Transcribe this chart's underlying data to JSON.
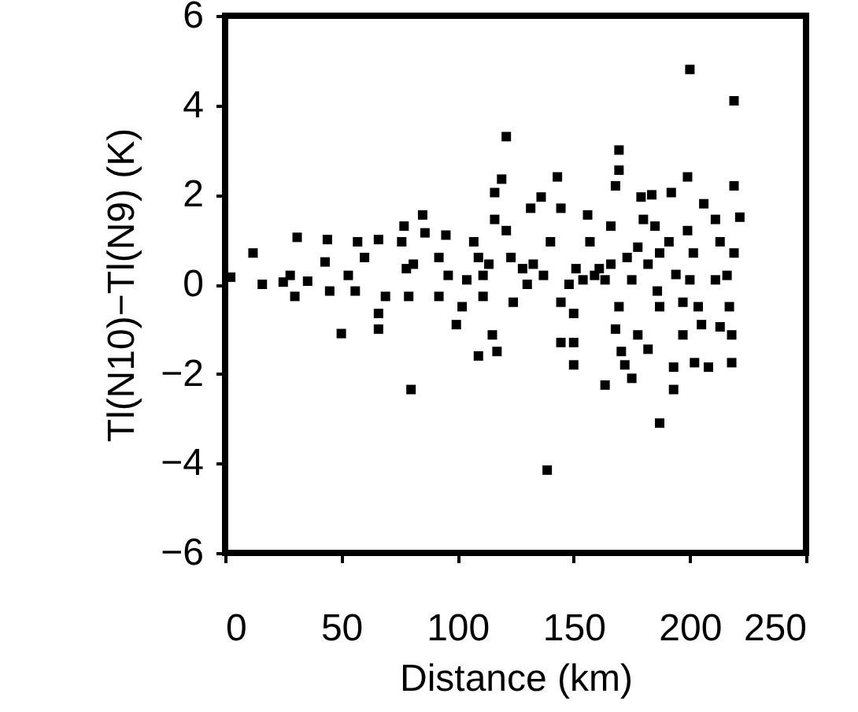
{
  "chart_data": {
    "type": "scatter",
    "xlabel": "Distance (km)",
    "ylabel": "Tl(N10)−Tl(N9)  (K)",
    "xlim": [
      0,
      250
    ],
    "xticks": [
      0,
      50,
      100,
      150,
      200,
      250
    ],
    "ylim": [
      -6,
      6
    ],
    "yticks": [
      -6,
      -4,
      -2,
      0,
      2,
      4,
      6
    ],
    "grid": false,
    "marker": "square",
    "series": [
      {
        "color": "#000000",
        "x": [
          2.4,
          12,
          16,
          25,
          28,
          30,
          31,
          35.5,
          44,
          43,
          45,
          50,
          53,
          57,
          56,
          60,
          66,
          66,
          66,
          69,
          77,
          76,
          78,
          81,
          79,
          80,
          85,
          86,
          92,
          95,
          92,
          96,
          99.5,
          102,
          107,
          109,
          111,
          115,
          109,
          117,
          116,
          119,
          121,
          116,
          121,
          123,
          124,
          128,
          131.5,
          136,
          140,
          137,
          143,
          144.5,
          144.5,
          150,
          144.5,
          150,
          150,
          138.6,
          156,
          157,
          154,
          161,
          166,
          168,
          169.5,
          169.5,
          169.5,
          168,
          170.5,
          172,
          175,
          163.5,
          177.6,
          182,
          179,
          183.6,
          180,
          185,
          182,
          186,
          187,
          192,
          191,
          193,
          193,
          187,
          197,
          197,
          199,
          200,
          199,
          201.5,
          200,
          203.6,
          202,
          208,
          205,
          206,
          211,
          213,
          211,
          213,
          218,
          217,
          218,
          219,
          219,
          221.5,
          219,
          216,
          159,
          163.5,
          166,
          151,
          148,
          132.6,
          130,
          113.5,
          111,
          104,
          173,
          175,
          177.6,
          194,
          187
        ],
        "values": [
          0.16,
          0.7,
          0,
          0.05,
          0.2,
          -0.27,
          1.05,
          0.07,
          1,
          0.5,
          -0.15,
          -1.1,
          0.2,
          0.95,
          -0.15,
          0.6,
          1,
          -0.65,
          -1,
          -0.27,
          1.3,
          0.95,
          0.35,
          0.45,
          -0.27,
          -2.35,
          1.55,
          1.15,
          0.6,
          1.1,
          -0.27,
          0.2,
          -0.9,
          -0.5,
          0.95,
          0.6,
          0.2,
          -1.13,
          -1.6,
          -1.5,
          2.05,
          2.35,
          3.3,
          1.45,
          1.2,
          0.6,
          -0.4,
          0.35,
          1.7,
          1.95,
          0.95,
          0.2,
          2.4,
          1.7,
          -0.4,
          -0.65,
          -1.3,
          -1.3,
          -1.8,
          -4.15,
          1.55,
          0.95,
          0.1,
          0.35,
          1.3,
          2.2,
          2.55,
          3,
          -0.5,
          -1,
          -1.5,
          -1.8,
          -2.1,
          -2.25,
          -1.13,
          -1.45,
          1.95,
          2,
          1.45,
          1.3,
          0.45,
          -0.15,
          -0.5,
          2.05,
          0.95,
          -1.85,
          -2.35,
          -3.1,
          -1.13,
          -0.4,
          2.4,
          4.8,
          1.2,
          0.7,
          0.1,
          -0.5,
          -1.75,
          -1.85,
          -0.9,
          1.8,
          1.45,
          0.95,
          0.1,
          -0.95,
          -1.13,
          -0.5,
          -1.75,
          2.2,
          4.1,
          1.5,
          0.7,
          0.2,
          0.2,
          0.1,
          0.45,
          0.35,
          0,
          0.45,
          0,
          0.45,
          -0.27,
          0.1,
          0.6,
          0.1,
          0.83,
          0.22,
          0.7
        ]
      }
    ]
  }
}
